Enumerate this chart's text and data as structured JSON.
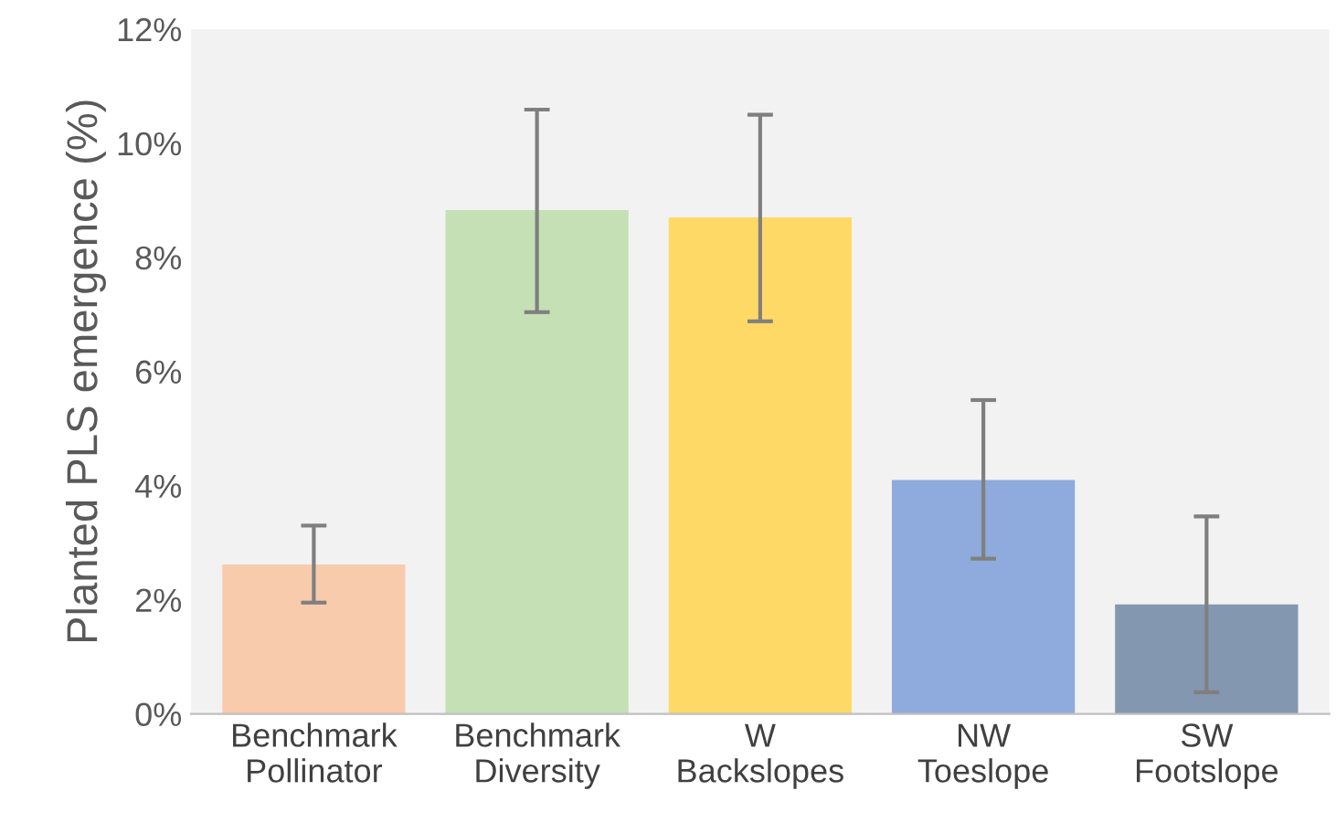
{
  "chart_data": {
    "type": "bar",
    "ylabel": "Planted PLS emergence (%)",
    "categories": [
      "Benchmark\nPollinator",
      "Benchmark\nDiversity",
      "W\nBackslopes",
      "NW\nToeslope",
      "SW\nFootslope"
    ],
    "values": [
      2.62,
      8.83,
      8.7,
      4.1,
      1.92
    ],
    "colors": [
      "#f8cbad",
      "#c5e0b4",
      "#ffd966",
      "#8faadc",
      "#8497b0"
    ],
    "errors": [
      [
        1.95,
        3.3
      ],
      [
        7.04,
        10.59
      ],
      [
        6.88,
        10.5
      ],
      [
        2.72,
        5.5
      ],
      [
        0.38,
        3.46
      ]
    ],
    "ylim": [
      0,
      12
    ],
    "yticks": [
      {
        "value": 0,
        "label": "0%"
      },
      {
        "value": 2,
        "label": "2%"
      },
      {
        "value": 4,
        "label": "4%"
      },
      {
        "value": 6,
        "label": "6%"
      },
      {
        "value": 8,
        "label": "8%"
      },
      {
        "value": 10,
        "label": "10%"
      },
      {
        "value": 12,
        "label": "12%"
      }
    ],
    "grid": false,
    "legend": false
  }
}
